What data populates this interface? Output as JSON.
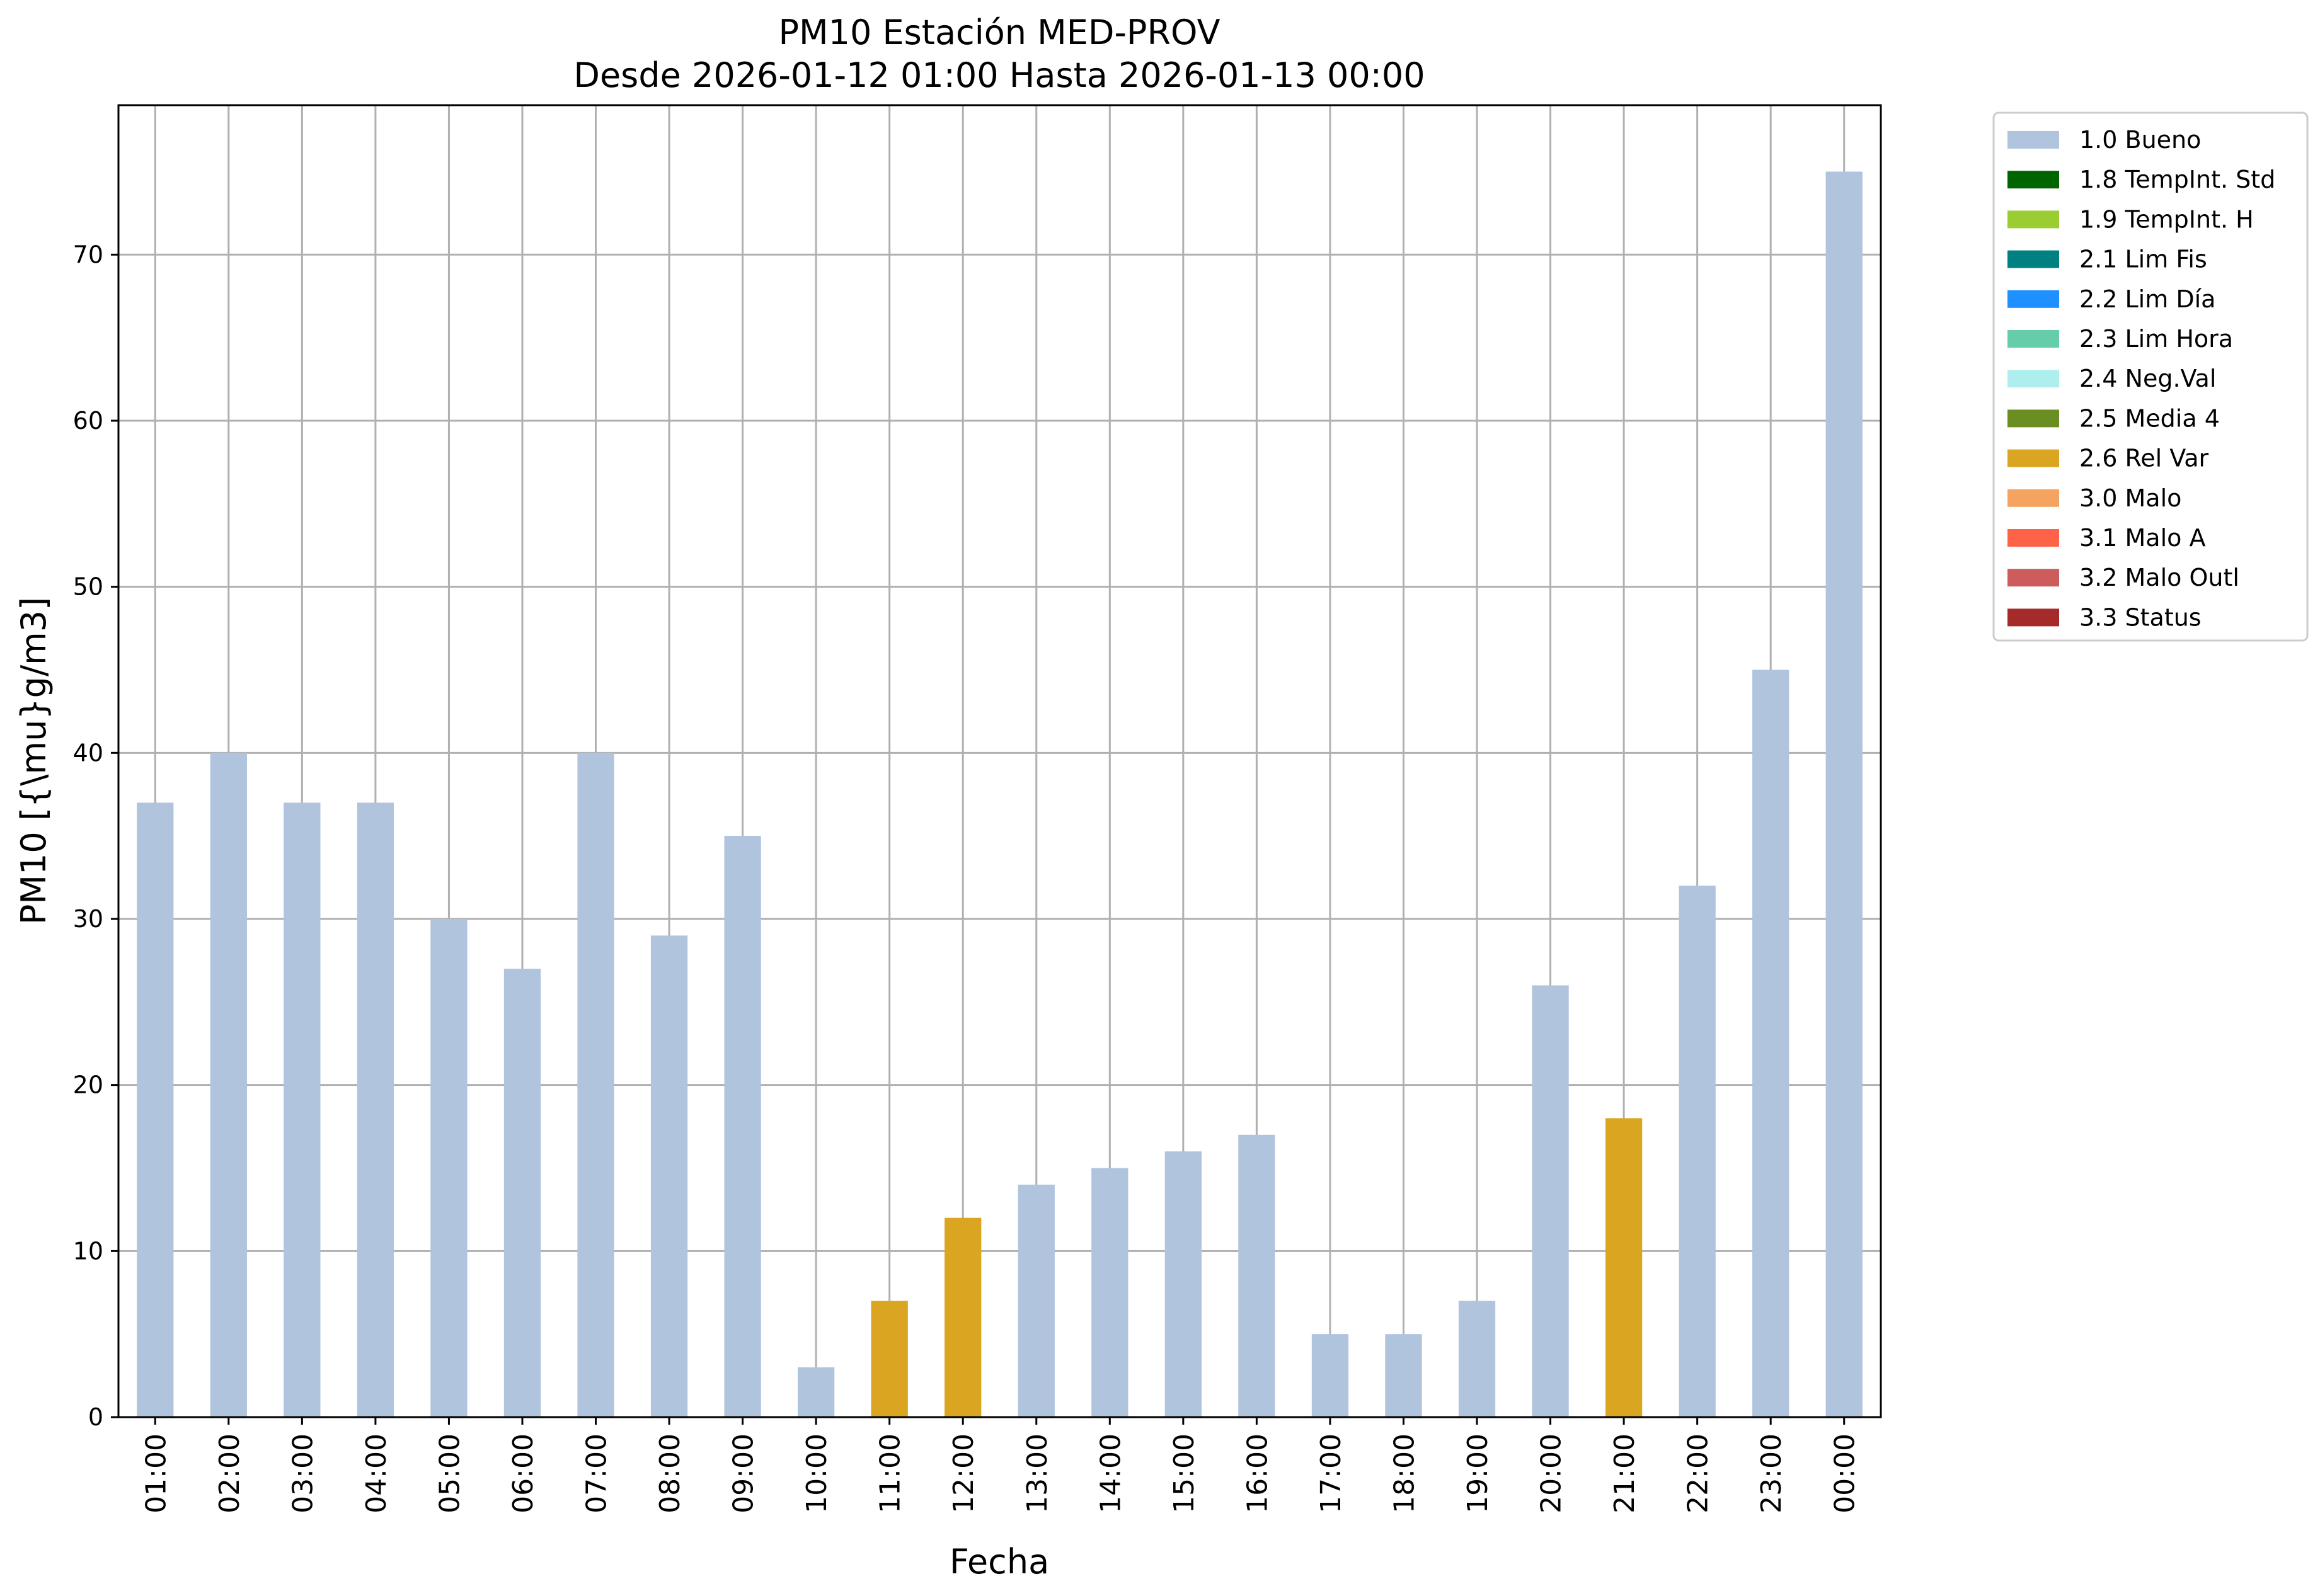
{
  "chart_data": {
    "type": "bar",
    "title": "PM10 Estación MED-PROV",
    "subtitle": "Desde 2026-01-12 01:00 Hasta 2026-01-13 00:00",
    "xlabel": "Fecha",
    "ylabel": "PM10 [{\\mu}g/m3]",
    "ylim": [
      0,
      79
    ],
    "yticks": [
      0,
      10,
      20,
      30,
      40,
      50,
      60,
      70
    ],
    "grid": true,
    "legend_position": "outside-top-right",
    "categories": [
      "01:00",
      "02:00",
      "03:00",
      "04:00",
      "05:00",
      "06:00",
      "07:00",
      "08:00",
      "09:00",
      "10:00",
      "11:00",
      "12:00",
      "13:00",
      "14:00",
      "15:00",
      "16:00",
      "17:00",
      "18:00",
      "19:00",
      "20:00",
      "21:00",
      "22:00",
      "23:00",
      "00:00"
    ],
    "values": [
      37,
      40,
      37,
      37,
      30,
      27,
      40,
      29,
      35,
      3,
      7,
      12,
      14,
      15,
      16,
      17,
      5,
      5,
      7,
      26,
      18,
      32,
      45,
      75
    ],
    "flags": [
      "1.0 Bueno",
      "1.0 Bueno",
      "1.0 Bueno",
      "1.0 Bueno",
      "1.0 Bueno",
      "1.0 Bueno",
      "1.0 Bueno",
      "1.0 Bueno",
      "1.0 Bueno",
      "1.0 Bueno",
      "2.6 Rel Var",
      "2.6 Rel Var",
      "1.0 Bueno",
      "1.0 Bueno",
      "1.0 Bueno",
      "1.0 Bueno",
      "1.0 Bueno",
      "1.0 Bueno",
      "1.0 Bueno",
      "1.0 Bueno",
      "2.6 Rel Var",
      "1.0 Bueno",
      "1.0 Bueno",
      "1.0 Bueno"
    ],
    "legend": [
      {
        "label": "1.0 Bueno",
        "color": "#b0c4de"
      },
      {
        "label": "1.8 TempInt. Std",
        "color": "#006400"
      },
      {
        "label": "1.9 TempInt. H",
        "color": "#9acd32"
      },
      {
        "label": "2.1 Lim Fis",
        "color": "#008080"
      },
      {
        "label": "2.2 Lim Día",
        "color": "#1e90ff"
      },
      {
        "label": "2.3 Lim Hora",
        "color": "#66cdaa"
      },
      {
        "label": "2.4 Neg.Val",
        "color": "#afeeee"
      },
      {
        "label": "2.5 Media 4",
        "color": "#6b8e23"
      },
      {
        "label": "2.6 Rel Var",
        "color": "#daa520"
      },
      {
        "label": "3.0 Malo",
        "color": "#f4a460"
      },
      {
        "label": "3.1 Malo A",
        "color": "#ff6347"
      },
      {
        "label": "3.2 Malo Outl",
        "color": "#cd5c5c"
      },
      {
        "label": "3.3 Status",
        "color": "#a52a2a"
      }
    ]
  }
}
